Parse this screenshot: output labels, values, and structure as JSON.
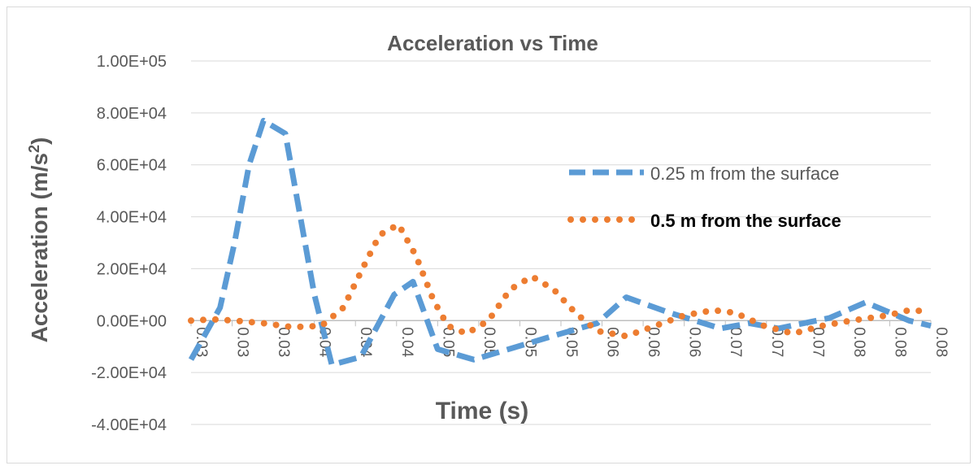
{
  "chart_data": {
    "type": "line",
    "title": "Acceleration vs Time",
    "xlabel": "Time (s)",
    "ylabel": "Acceleration (m/s²)",
    "ylabel_main": "Acceleration (m/s",
    "ylabel_sup": "2",
    "ylabel_close": ")",
    "ylim": [
      -40000,
      100000
    ],
    "y_ticks": [
      100000,
      80000,
      60000,
      40000,
      20000,
      0,
      -20000,
      -40000
    ],
    "y_tick_labels": [
      "1.00E+05",
      "8.00E+04",
      "6.00E+04",
      "4.00E+04",
      "2.00E+04",
      "0.00E+00",
      "-2.00E+04",
      "-4.00E+04"
    ],
    "categories": [
      "0.03",
      "0.03",
      "0.03",
      "0.04",
      "0.04",
      "0.04",
      "0.05",
      "0.05",
      "0.05",
      "0.05",
      "0.06",
      "0.06",
      "0.06",
      "0.07",
      "0.07",
      "0.07",
      "0.08",
      "0.08",
      "0.08"
    ],
    "x_start": 0.0295,
    "x_end": 0.0805,
    "grid": true,
    "legend_position": "right",
    "colors": {
      "series1": "#5b9bd5",
      "series2": "#ed7d31",
      "grid": "#d9d9d9",
      "text": "#595959"
    },
    "series": [
      {
        "name": "0.25 m from the surface",
        "style": "dashed",
        "x": [
          0.0295,
          0.0315,
          0.0325,
          0.0335,
          0.0345,
          0.036,
          0.038,
          0.0392,
          0.0412,
          0.0435,
          0.0448,
          0.0465,
          0.049,
          0.052,
          0.055,
          0.0575,
          0.0595,
          0.0625,
          0.066,
          0.068,
          0.07,
          0.0735,
          0.076,
          0.079,
          0.0805
        ],
        "y": [
          -15000,
          5000,
          30000,
          60000,
          77000,
          72000,
          10000,
          -17000,
          -14000,
          10000,
          15000,
          -11000,
          -15000,
          -10000,
          -5000,
          -1000,
          9000,
          3000,
          -3000,
          -1000,
          -3000,
          1000,
          7000,
          0,
          -2000
        ]
      },
      {
        "name": "0.5 m from the surface",
        "style": "dotted",
        "x": [
          0.0295,
          0.031,
          0.0325,
          0.0345,
          0.0365,
          0.0385,
          0.04,
          0.0415,
          0.0425,
          0.0438,
          0.045,
          0.0462,
          0.0472,
          0.0485,
          0.05,
          0.0515,
          0.053,
          0.0545,
          0.056,
          0.0575,
          0.0595,
          0.0615,
          0.0635,
          0.0655,
          0.067,
          0.069,
          0.071,
          0.073,
          0.075,
          0.0775,
          0.079,
          0.0805
        ],
        "y": [
          0,
          500,
          0,
          -1000,
          -2500,
          -2000,
          5000,
          22000,
          33000,
          37000,
          25000,
          8000,
          -2000,
          -5000,
          0,
          12000,
          17000,
          12000,
          3000,
          -4000,
          -6000,
          -2000,
          2000,
          4000,
          3000,
          -2000,
          -5000,
          -2000,
          0,
          2000,
          4000,
          3500
        ]
      }
    ]
  }
}
